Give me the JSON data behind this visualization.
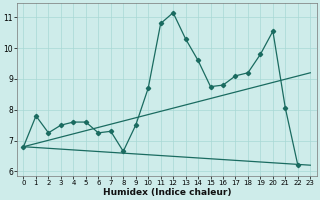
{
  "xlabel": "Humidex (Indice chaleur)",
  "background_color": "#ceecea",
  "grid_color": "#a8d8d5",
  "line_color": "#1a6b60",
  "xlim": [
    -0.5,
    23.5
  ],
  "ylim": [
    5.85,
    11.45
  ],
  "yticks": [
    6,
    7,
    8,
    9,
    10,
    11
  ],
  "xticks": [
    0,
    1,
    2,
    3,
    4,
    5,
    6,
    7,
    8,
    9,
    10,
    11,
    12,
    13,
    14,
    15,
    16,
    17,
    18,
    19,
    20,
    21,
    22,
    23
  ],
  "series1_x": [
    0,
    1,
    2,
    3,
    4,
    5,
    6,
    7,
    8,
    9,
    10,
    11,
    12,
    13,
    14,
    15,
    16,
    17,
    18,
    19,
    20,
    21,
    22
  ],
  "series1_y": [
    6.8,
    7.8,
    7.25,
    7.5,
    7.6,
    7.6,
    7.25,
    7.3,
    6.65,
    7.5,
    8.7,
    10.8,
    11.15,
    10.3,
    9.6,
    8.75,
    8.8,
    9.1,
    9.2,
    9.8,
    10.55,
    8.05,
    6.2
  ],
  "line2_x0": 0,
  "line2_y0": 6.8,
  "line2_x1": 23,
  "line2_y1": 9.2,
  "line3_x0": 0,
  "line3_y0": 6.8,
  "line3_x1": 23,
  "line3_y1": 6.2
}
